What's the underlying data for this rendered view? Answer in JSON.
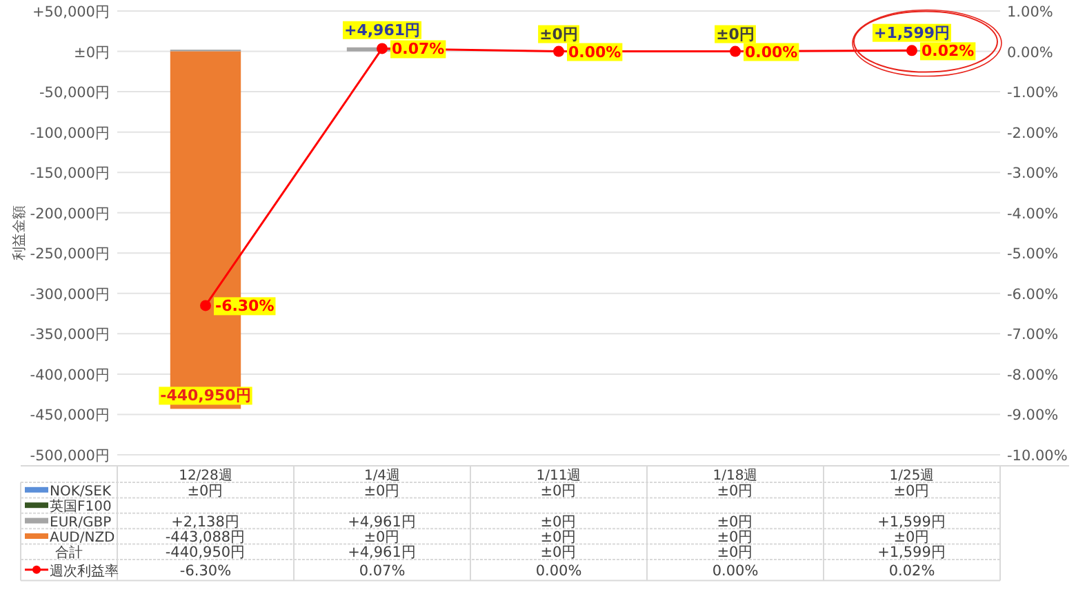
{
  "chart_data": {
    "type": "bar",
    "stacked": true,
    "ylabel": "利益金額",
    "categories": [
      "12/28週",
      "1/4週",
      "1/11週",
      "1/18週",
      "1/25週"
    ],
    "series": [
      {
        "name": "NOK/SEK",
        "color": "#5b8fd9",
        "values": [
          0,
          0,
          0,
          0,
          0
        ],
        "value_labels": [
          "±0円",
          "±0円",
          "±0円",
          "±0円",
          "±0円"
        ]
      },
      {
        "name": "英国F100",
        "color": "#375623",
        "values": [
          null,
          null,
          null,
          null,
          null
        ],
        "value_labels": [
          null,
          null,
          null,
          null,
          null
        ]
      },
      {
        "name": "EUR/GBP",
        "color": "#a5a5a5",
        "values": [
          2138,
          4961,
          0,
          0,
          1599
        ],
        "value_labels": [
          "+2,138円",
          "+4,961円",
          "±0円",
          "±0円",
          "+1,599円"
        ]
      },
      {
        "name": "AUD/NZD",
        "color": "#ed7d31",
        "values": [
          -443088,
          0,
          0,
          0,
          0
        ],
        "value_labels": [
          "-443,088円",
          "±0円",
          "±0円",
          "±0円",
          "±0円"
        ]
      },
      {
        "name": "週次利益率",
        "type": "line",
        "axis": "y2",
        "marker": "circle",
        "color": "#ff0000",
        "values": [
          -6.3,
          0.07,
          0,
          0,
          0.02
        ],
        "value_labels": [
          "-6.30%",
          "0.07%",
          "0.00%",
          "0.00%",
          "0.02%"
        ]
      }
    ],
    "totals": [
      "-440,950円",
      "+4,961円",
      "±0円",
      "±0円",
      "+1,599円"
    ],
    "annotations": [
      "合計"
    ],
    "ylim": [
      -500000,
      50000
    ],
    "yticks": [
      {
        "value": 50000,
        "label": "+50,000円"
      },
      {
        "value": 0,
        "label": "±0円"
      },
      {
        "value": -50000,
        "label": "-50,000円"
      },
      {
        "value": -100000,
        "label": "-100,000円"
      },
      {
        "value": -150000,
        "label": "-150,000円"
      },
      {
        "value": -200000,
        "label": "-200,000円"
      },
      {
        "value": -250000,
        "label": "-250,000円"
      },
      {
        "value": -300000,
        "label": "-300,000円"
      },
      {
        "value": -350000,
        "label": "-350,000円"
      },
      {
        "value": -400000,
        "label": "-400,000円"
      },
      {
        "value": -450000,
        "label": "-450,000円"
      },
      {
        "value": -500000,
        "label": "-500,000円"
      }
    ],
    "y2lim": [
      -10,
      1
    ],
    "y2ticks": [
      {
        "value": 1,
        "label": "1.00%"
      },
      {
        "value": 0,
        "label": "0.00%"
      },
      {
        "value": -1,
        "label": "-1.00%"
      },
      {
        "value": -2,
        "label": "-2.00%"
      },
      {
        "value": -3,
        "label": "-3.00%"
      },
      {
        "value": -4,
        "label": "-4.00%"
      },
      {
        "value": -5,
        "label": "-5.00%"
      },
      {
        "value": -6,
        "label": "-6.00%"
      },
      {
        "value": -7,
        "label": "-7.00%"
      },
      {
        "value": -8,
        "label": "-8.00%"
      },
      {
        "value": -9,
        "label": "-9.00%"
      },
      {
        "value": -10,
        "label": "-10.00%"
      }
    ],
    "grid": "y",
    "legend": "bottom"
  }
}
